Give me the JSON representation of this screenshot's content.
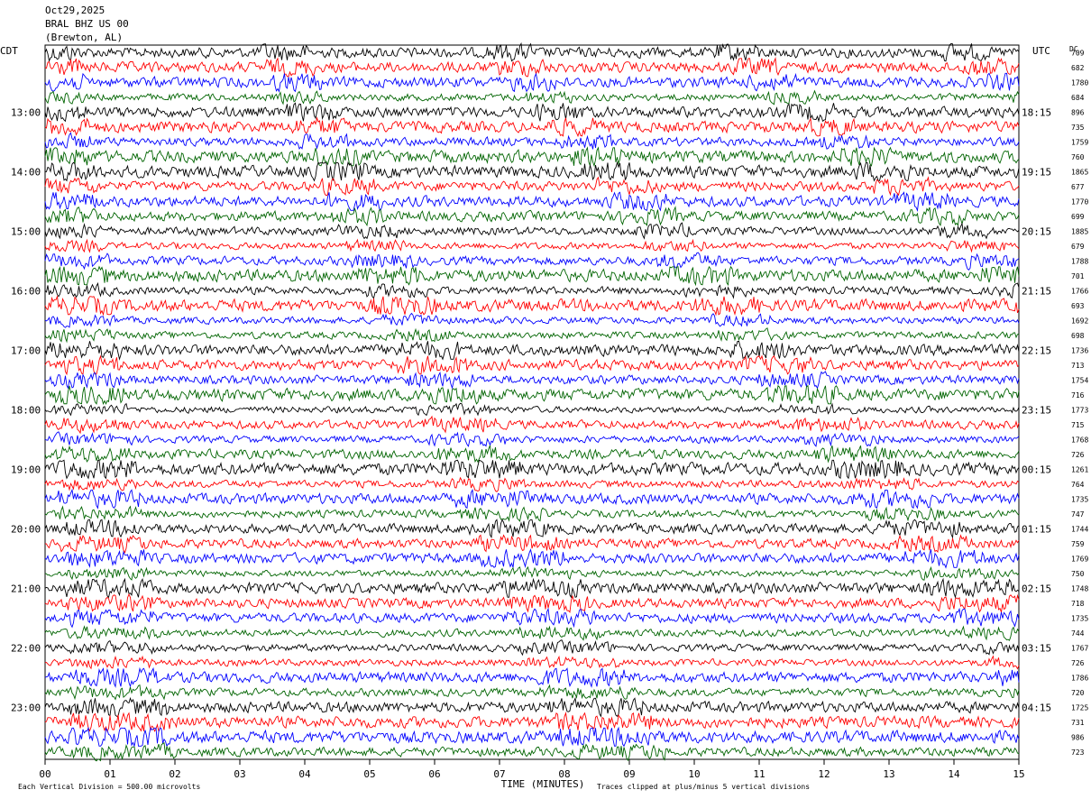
{
  "chart_data": {
    "type": "helicorder",
    "title_lines": [
      "Oct29,2025",
      "BRAL BHZ US 00",
      "(Brewton, AL)"
    ],
    "left_axis_title": "CDT",
    "right_axis_title": "UTC",
    "dc_title": "DC",
    "left_labels": [
      "13:00",
      "14:00",
      "15:00",
      "16:00",
      "17:00",
      "18:00",
      "19:00",
      "20:00",
      "21:00",
      "22:00",
      "23:00"
    ],
    "right_labels": [
      "18:15",
      "19:15",
      "20:15",
      "21:15",
      "22:15",
      "23:15",
      "00:15",
      "01:15",
      "02:15",
      "03:15",
      "04:15"
    ],
    "trace_colors": [
      "#000000",
      "#ff0000",
      "#0000ff",
      "#006400"
    ],
    "dc_values": [
      709,
      682,
      1780,
      684,
      896,
      735,
      1759,
      760,
      1865,
      677,
      1770,
      699,
      1885,
      679,
      1788,
      701,
      1766,
      693,
      1692,
      698,
      1736,
      713,
      1754,
      716,
      1773,
      715,
      1768,
      726,
      1261,
      764,
      1735,
      747,
      1744,
      759,
      1769,
      750,
      1748,
      718,
      1735,
      744,
      1767,
      726,
      1786,
      720,
      1725,
      731,
      986,
      723
    ],
    "xlim": [
      0,
      15
    ],
    "xticks": [
      {
        "value": 0,
        "label": "00"
      },
      {
        "value": 1,
        "label": "01"
      },
      {
        "value": 2,
        "label": "02"
      },
      {
        "value": 3,
        "label": "03"
      },
      {
        "value": 4,
        "label": "04"
      },
      {
        "value": 5,
        "label": "05"
      },
      {
        "value": 6,
        "label": "06"
      },
      {
        "value": 7,
        "label": "07"
      },
      {
        "value": 8,
        "label": "08"
      },
      {
        "value": 9,
        "label": "09"
      },
      {
        "value": 10,
        "label": "10"
      },
      {
        "value": 11,
        "label": "11"
      },
      {
        "value": 12,
        "label": "12"
      },
      {
        "value": 13,
        "label": "13"
      },
      {
        "value": 14,
        "label": "14"
      },
      {
        "value": 15,
        "label": "15"
      }
    ],
    "x_label": "TIME (MINUTES)",
    "footnote_left": "Each Vertical Division =  500.00 microvolts",
    "footnote_right": "Traces clipped at plus/minus 5 vertical divisions"
  }
}
